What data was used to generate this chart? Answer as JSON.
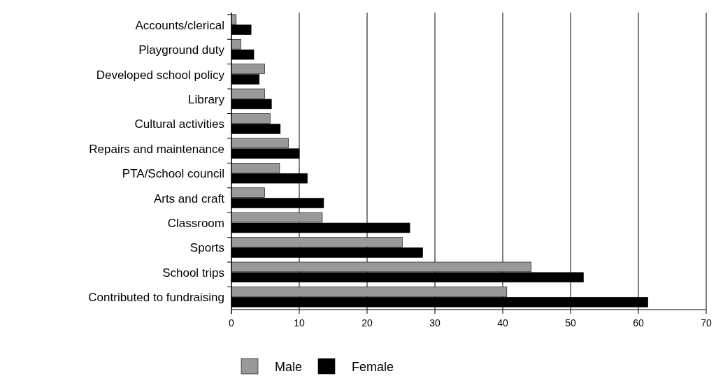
{
  "chart_data": {
    "type": "bar",
    "orientation": "horizontal",
    "categories": [
      "Accounts/clerical",
      "Playground duty",
      "Developed school policy",
      "Library",
      "Cultural activities",
      "Repairs and maintenance",
      "PTA/School council",
      "Arts and craft",
      "Classroom",
      "Sports",
      "School trips",
      "Contributed to fundraising"
    ],
    "series": [
      {
        "name": "Male",
        "color": "#999999",
        "values": [
          0.7,
          1.4,
          4.9,
          4.9,
          5.7,
          8.4,
          7.1,
          4.9,
          13.4,
          25.2,
          44.2,
          40.6
        ]
      },
      {
        "name": "Female",
        "color": "#000000",
        "values": [
          2.9,
          3.3,
          4.1,
          5.9,
          7.2,
          10.0,
          11.2,
          13.6,
          26.3,
          28.2,
          51.9,
          61.4
        ]
      }
    ],
    "xlim": [
      0,
      70
    ],
    "xticks": [
      0,
      10,
      20,
      30,
      40,
      50,
      60,
      70
    ],
    "grid": "x",
    "legend": "bottom"
  }
}
